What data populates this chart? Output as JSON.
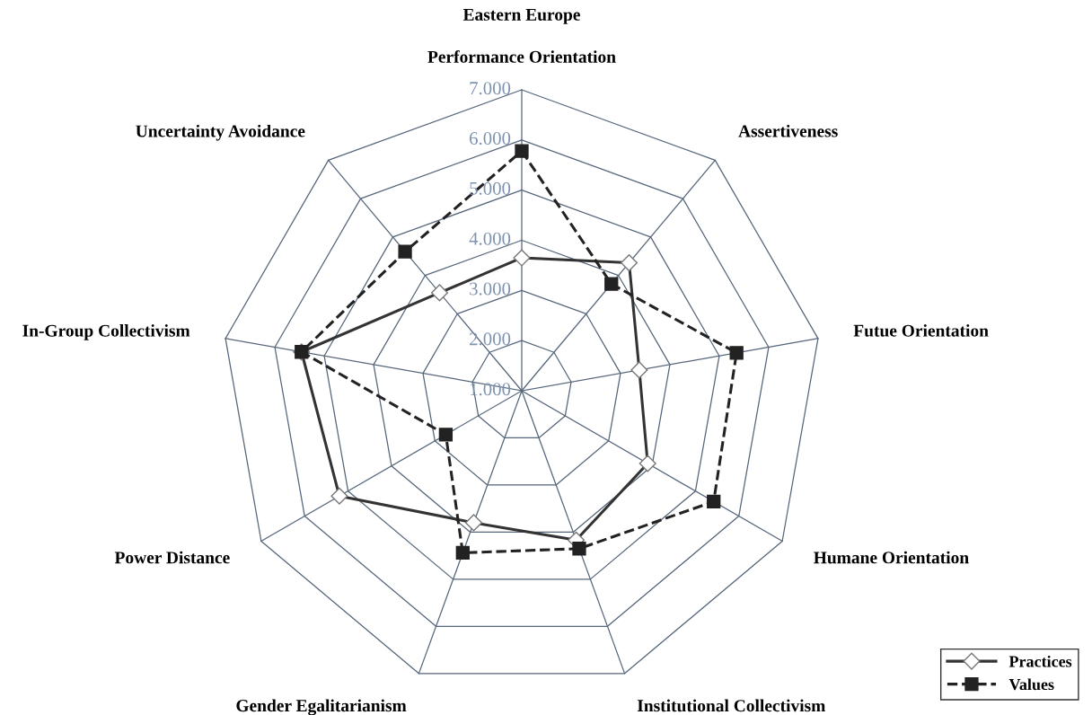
{
  "chart_data": {
    "type": "radar",
    "title": "Eastern Europe",
    "categories": [
      "Performance Orientation",
      "Assertiveness",
      "Futue Orientation",
      "Humane Orientation",
      "Institutional Collectivism",
      "Gender Egalitarianism",
      "Power Distance",
      "In-Group Collectivism",
      "Uncertainty Avoidance"
    ],
    "ylim": [
      1,
      7
    ],
    "yticks": [
      {
        "value": 1,
        "label": "1.000"
      },
      {
        "value": 2,
        "label": "2.000"
      },
      {
        "value": 3,
        "label": "3.000"
      },
      {
        "value": 4,
        "label": "4.000"
      },
      {
        "value": 5,
        "label": "5.000"
      },
      {
        "value": 6,
        "label": "6.000"
      },
      {
        "value": 7,
        "label": "7.000"
      }
    ],
    "grid": true,
    "legend": "bottom right",
    "series": [
      {
        "name": "Practices",
        "color": "#333333",
        "marker": "diamond",
        "line_style": "solid",
        "values": [
          3.65,
          4.33,
          3.38,
          3.9,
          4.17,
          3.8,
          5.2,
          5.46,
          3.55
        ]
      },
      {
        "name": "Values",
        "color": "#222222",
        "marker": "square",
        "line_style": "dashed",
        "values": [
          5.78,
          3.78,
          5.35,
          5.42,
          4.35,
          4.44,
          2.75,
          5.46,
          4.62
        ]
      }
    ]
  }
}
